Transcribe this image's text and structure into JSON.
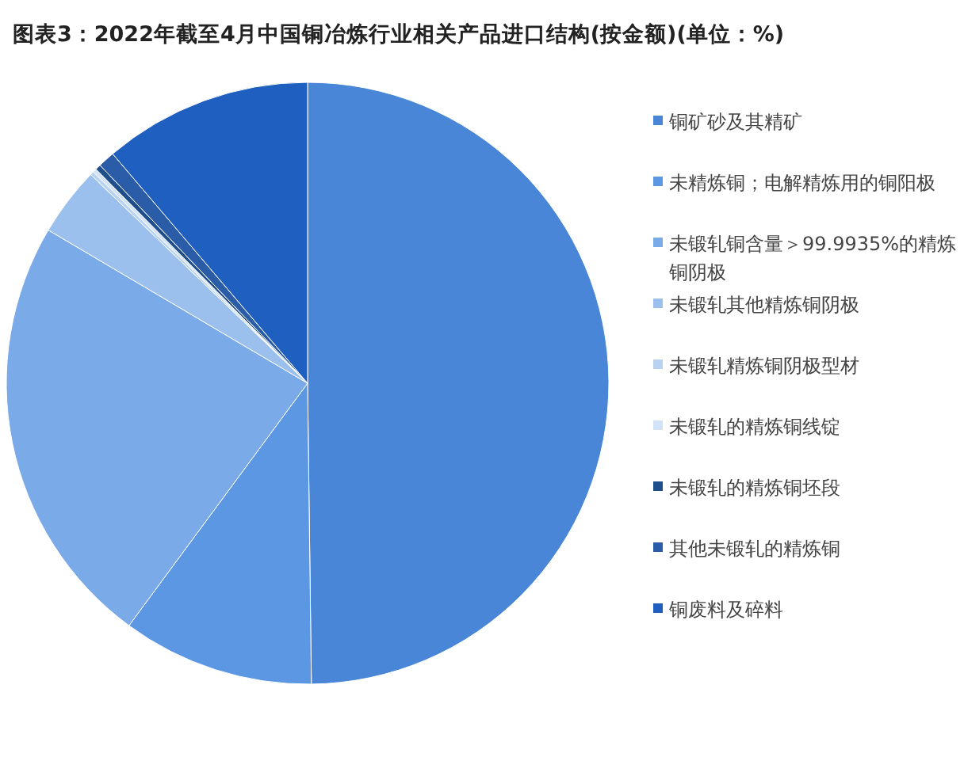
{
  "chart_data": {
    "type": "pie",
    "title": "图表3：2022年截至4月中国铜冶炼行业相关产品进口结构(按金额)(单位：%)",
    "categories": [
      "铜矿砂及其精矿",
      "未精炼铜；电解精炼用的铜阳极",
      "未锻轧铜含量＞99.9935%的精炼铜阴极",
      "未锻轧其他精炼铜阴极",
      "未锻轧精炼铜阴极型材",
      "未锻轧的精炼铜线锭",
      "未锻轧的精炼铜坯段",
      "其他未锻轧的精炼铜",
      "铜废料及碎料"
    ],
    "values": [
      49.8,
      10.3,
      23.4,
      3.7,
      0.2,
      0.2,
      0.3,
      0.9,
      11.2
    ],
    "colors": [
      "#4a86d8",
      "#5b97e2",
      "#7aaae8",
      "#9cc0ee",
      "#b8d2f2",
      "#d2e2f7",
      "#1f4e8c",
      "#2a5ca8",
      "#1f5fbf"
    ],
    "legend": "right"
  }
}
